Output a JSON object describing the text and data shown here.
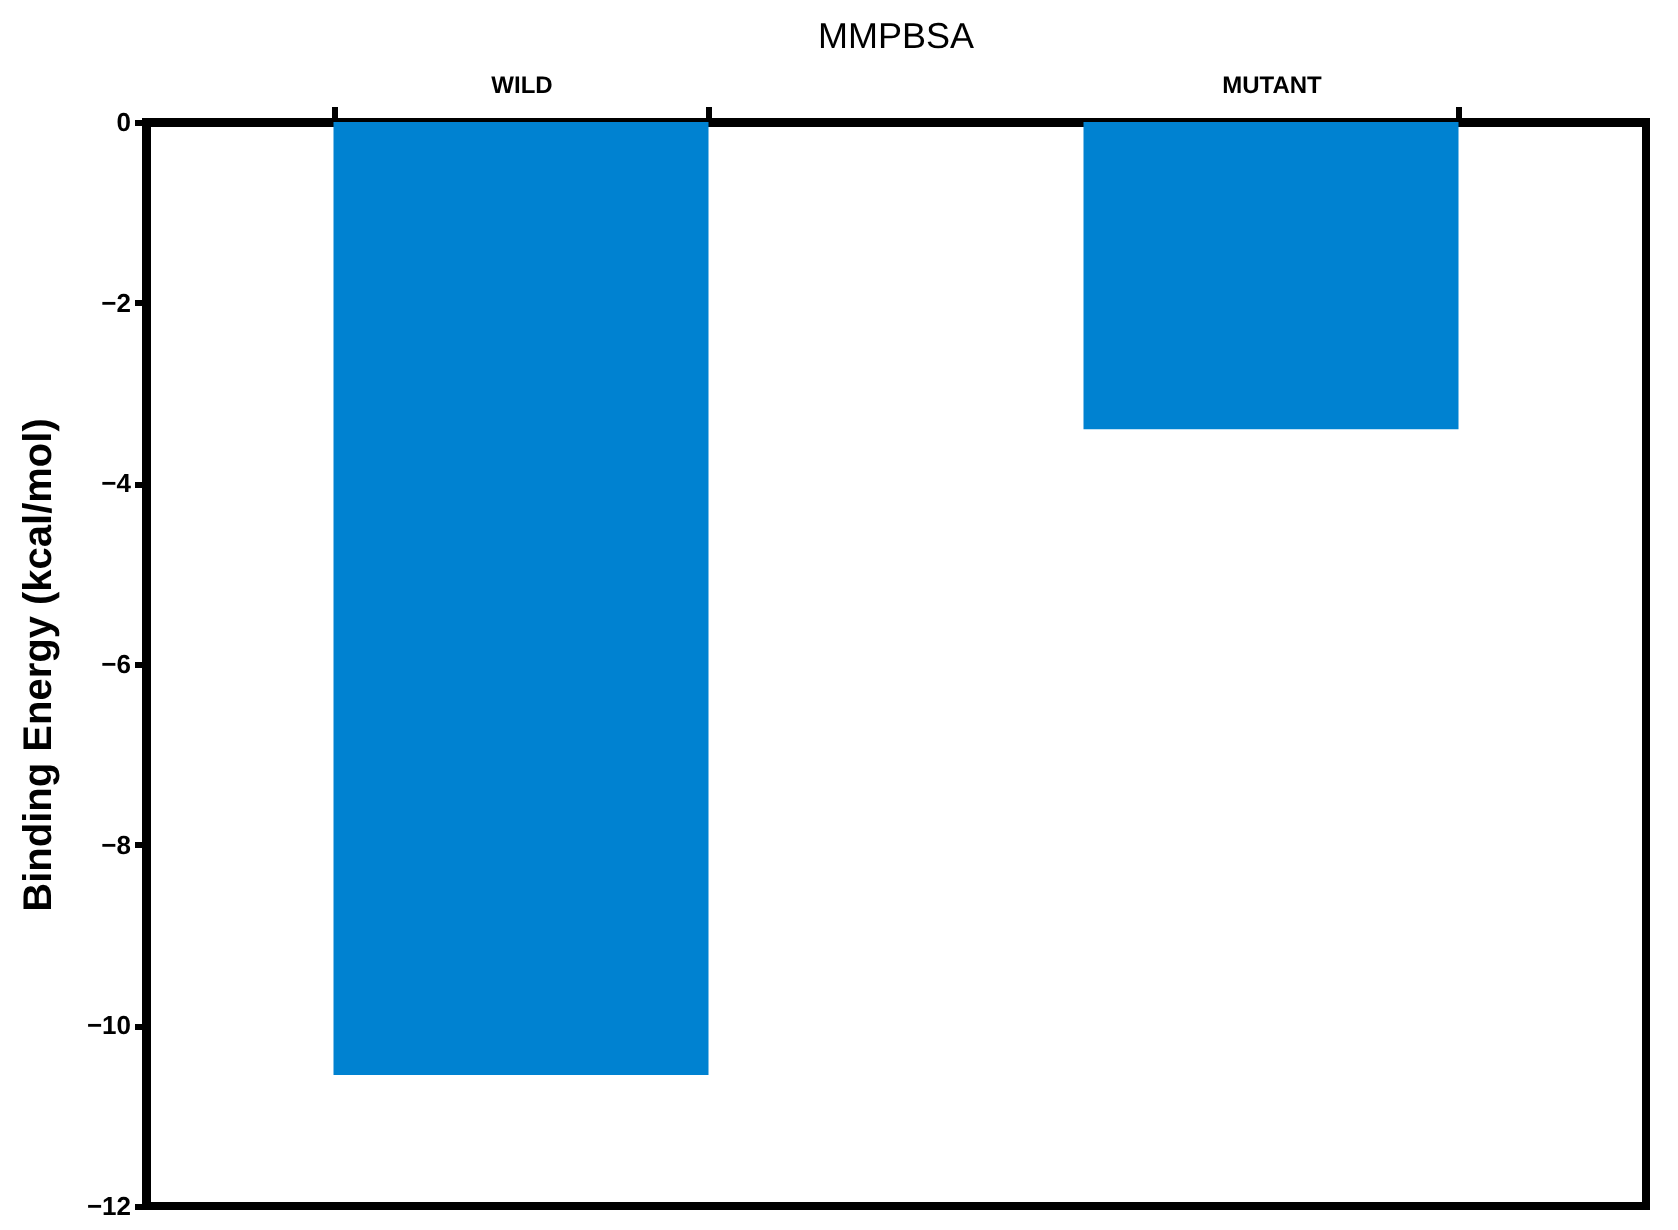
{
  "chart_data": {
    "type": "bar",
    "title": "MMPBSA",
    "ylabel": "Binding Energy (kcal/mol)",
    "categories": [
      "WILD",
      "MUTANT"
    ],
    "values": [
      -10.55,
      -3.4
    ],
    "color": "#0082d1",
    "ylim": [
      -12,
      0
    ],
    "yticks": [
      -12,
      -10,
      -8,
      -6,
      -4,
      -2,
      0
    ],
    "grid": false
  }
}
